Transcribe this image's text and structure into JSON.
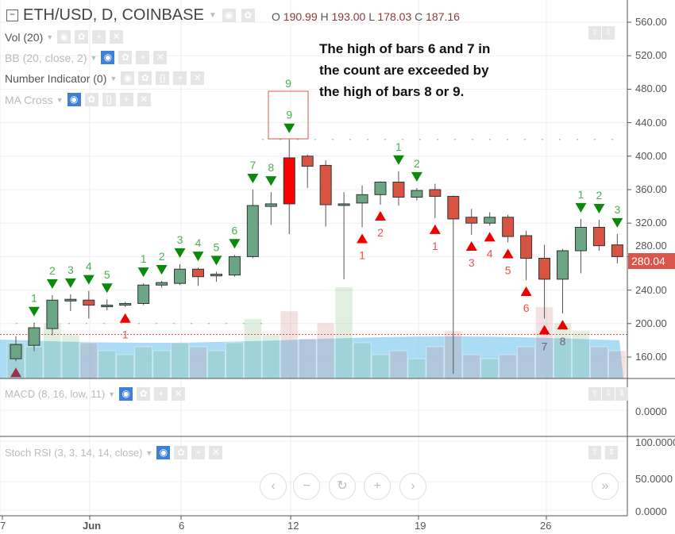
{
  "header": {
    "symbol": "ETH/USD, D, COINBASE",
    "ohlc": {
      "o_label": "O",
      "o": "190.99",
      "h_label": "H",
      "h": "193.00",
      "l_label": "L",
      "l": "178.03",
      "c_label": "C",
      "c": "187.16"
    }
  },
  "indicators": [
    {
      "label": "Vol (20)"
    },
    {
      "label": "BB (20, close, 2)"
    },
    {
      "label": "Number Indicator (0)"
    },
    {
      "label": "MA Cross"
    }
  ],
  "annotation": {
    "lines": [
      "The high of bars 6 and 7 in",
      "the count are exceeded by",
      "the high of bars 8 or 9."
    ],
    "box_label": "9"
  },
  "price_axis": [
    "560.00",
    "520.00",
    "480.00",
    "440.00",
    "400.00",
    "360.00",
    "320.00",
    "280.00",
    "240.00",
    "200.00",
    "160.00"
  ],
  "last_price": "280.04",
  "macd": {
    "label": "MACD (8, 16, low, 11)",
    "axis": [
      "0.0000"
    ]
  },
  "stoch": {
    "label": "Stoch RSI (3, 3, 14, 14, close)",
    "axis": [
      "100.0000",
      "50.0000",
      "0.0000"
    ]
  },
  "time_axis": [
    "7",
    "Jun",
    "6",
    "12",
    "19",
    "26"
  ],
  "nav": {
    "prev": "‹",
    "zoom_out": "−",
    "reset": "↻",
    "zoom_in": "+",
    "next": "›",
    "scroll_end": "»"
  },
  "colors": {
    "up": "#6ba583",
    "down": "#d75442",
    "sell_arrow": "#0a8a0a",
    "buy_arrow": "#ee0000",
    "sell_text": "#4caf50",
    "buy_text": "#f05050"
  },
  "chart_data": {
    "type": "candlestick",
    "ylim": [
      140,
      580
    ],
    "levels": {
      "resistance": 420,
      "support": 200,
      "last_close_line": 187
    },
    "candles": [
      {
        "o": 158,
        "h": 185,
        "l": 155,
        "c": 175,
        "v": 45
      },
      {
        "o": 174,
        "h": 201,
        "l": 167,
        "c": 195,
        "v": 40
      },
      {
        "o": 194,
        "h": 234,
        "l": 186,
        "c": 228,
        "v": 70
      },
      {
        "o": 227,
        "h": 235,
        "l": 215,
        "c": 229,
        "v": 55
      },
      {
        "o": 228,
        "h": 239,
        "l": 206,
        "c": 222,
        "v": 45
      },
      {
        "o": 222,
        "h": 229,
        "l": 216,
        "c": 222,
        "v": 35
      },
      {
        "o": 222,
        "h": 226,
        "l": 220,
        "c": 224,
        "v": 30
      },
      {
        "o": 224,
        "h": 248,
        "l": 222,
        "c": 246,
        "v": 40
      },
      {
        "o": 246,
        "h": 251,
        "l": 243,
        "c": 249,
        "v": 35
      },
      {
        "o": 248,
        "h": 271,
        "l": 246,
        "c": 265,
        "v": 45
      },
      {
        "o": 265,
        "h": 267,
        "l": 245,
        "c": 256,
        "v": 40
      },
      {
        "o": 257,
        "h": 262,
        "l": 250,
        "c": 259,
        "v": 35
      },
      {
        "o": 258,
        "h": 282,
        "l": 256,
        "c": 280,
        "v": 45
      },
      {
        "o": 280,
        "h": 360,
        "l": 278,
        "c": 341,
        "v": 75
      },
      {
        "o": 340,
        "h": 357,
        "l": 318,
        "c": 343,
        "v": 55
      },
      {
        "o": 398,
        "h": 420,
        "l": 307,
        "c": 343,
        "v": 85
      },
      {
        "o": 400,
        "h": 402,
        "l": 362,
        "c": 388,
        "v": 50
      },
      {
        "o": 389,
        "h": 395,
        "l": 316,
        "c": 342,
        "v": 70
      },
      {
        "o": 342,
        "h": 357,
        "l": 253,
        "c": 343,
        "v": 115
      },
      {
        "o": 344,
        "h": 365,
        "l": 315,
        "c": 354,
        "v": 45
      },
      {
        "o": 354,
        "h": 370,
        "l": 342,
        "c": 369,
        "v": 30
      },
      {
        "o": 369,
        "h": 382,
        "l": 341,
        "c": 351,
        "v": 35
      },
      {
        "o": 351,
        "h": 362,
        "l": 347,
        "c": 359,
        "v": 25
      },
      {
        "o": 360,
        "h": 367,
        "l": 326,
        "c": 352,
        "v": 40
      },
      {
        "o": 352,
        "h": 353,
        "l": 140,
        "c": 325,
        "v": 60
      },
      {
        "o": 327,
        "h": 337,
        "l": 306,
        "c": 320,
        "v": 30
      },
      {
        "o": 320,
        "h": 333,
        "l": 317,
        "c": 327,
        "v": 25
      },
      {
        "o": 327,
        "h": 330,
        "l": 297,
        "c": 304,
        "v": 30
      },
      {
        "o": 305,
        "h": 311,
        "l": 252,
        "c": 278,
        "v": 40
      },
      {
        "o": 278,
        "h": 294,
        "l": 206,
        "c": 253,
        "v": 90
      },
      {
        "o": 253,
        "h": 289,
        "l": 212,
        "c": 287,
        "v": 70
      },
      {
        "o": 287,
        "h": 325,
        "l": 260,
        "c": 315,
        "v": 60
      },
      {
        "o": 315,
        "h": 324,
        "l": 287,
        "c": 293,
        "v": 40
      },
      {
        "o": 294,
        "h": 307,
        "l": 272,
        "c": 280,
        "v": 35
      }
    ],
    "sell_setup": [
      [
        1,
        "1"
      ],
      [
        2,
        "2"
      ],
      [
        3,
        "3"
      ],
      [
        4,
        "4"
      ],
      [
        5,
        "5"
      ],
      [
        7,
        "1"
      ],
      [
        8,
        "2"
      ],
      [
        9,
        "3"
      ],
      [
        10,
        "4"
      ],
      [
        11,
        "5"
      ],
      [
        12,
        "6"
      ],
      [
        13,
        "7"
      ],
      [
        14,
        "8"
      ],
      [
        15,
        "9"
      ],
      [
        21,
        "1"
      ],
      [
        22,
        "2"
      ],
      [
        31,
        "1"
      ],
      [
        32,
        "2"
      ],
      [
        33,
        "3"
      ]
    ],
    "buy_setup": [
      [
        0,
        ""
      ],
      [
        6,
        "1"
      ],
      [
        19,
        "1"
      ],
      [
        20,
        "2"
      ],
      [
        23,
        "1"
      ],
      [
        25,
        "3"
      ],
      [
        26,
        "4"
      ],
      [
        27,
        "5"
      ],
      [
        28,
        "6"
      ],
      [
        29,
        "7"
      ],
      [
        30,
        "8"
      ]
    ]
  }
}
